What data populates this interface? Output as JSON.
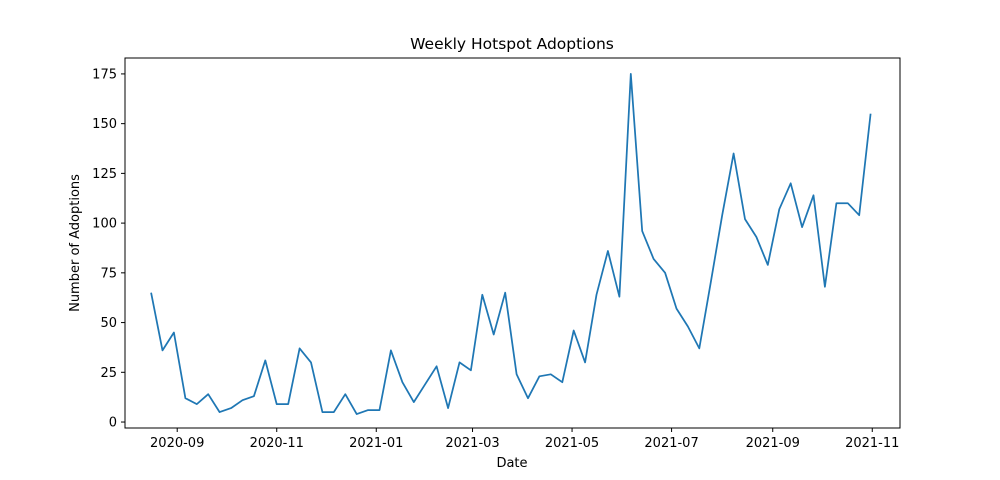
{
  "chart_data": {
    "type": "line",
    "title": "Weekly Hotspot Adoptions",
    "xlabel": "Date",
    "ylabel": "Number of Adoptions",
    "xlim": [
      "2020-07-31",
      "2021-11-18"
    ],
    "ylim": [
      -3,
      183
    ],
    "grid": false,
    "legend": "none",
    "line_color": "#1f77b4",
    "x_ticks": [
      {
        "date": "2020-09-01",
        "label": "2020-09"
      },
      {
        "date": "2020-11-01",
        "label": "2020-11"
      },
      {
        "date": "2021-01-01",
        "label": "2021-01"
      },
      {
        "date": "2021-03-01",
        "label": "2021-03"
      },
      {
        "date": "2021-05-01",
        "label": "2021-05"
      },
      {
        "date": "2021-07-01",
        "label": "2021-07"
      },
      {
        "date": "2021-09-01",
        "label": "2021-09"
      },
      {
        "date": "2021-11-01",
        "label": "2021-11"
      }
    ],
    "y_ticks": [
      {
        "value": 0,
        "label": "0"
      },
      {
        "value": 25,
        "label": "25"
      },
      {
        "value": 50,
        "label": "50"
      },
      {
        "value": 75,
        "label": "75"
      },
      {
        "value": 100,
        "label": "100"
      },
      {
        "value": 125,
        "label": "125"
      },
      {
        "value": 150,
        "label": "150"
      },
      {
        "value": 175,
        "label": "175"
      }
    ],
    "x": [
      "2020-08-16",
      "2020-08-23",
      "2020-08-30",
      "2020-09-06",
      "2020-09-13",
      "2020-09-20",
      "2020-09-27",
      "2020-10-04",
      "2020-10-11",
      "2020-10-18",
      "2020-10-25",
      "2020-11-01",
      "2020-11-08",
      "2020-11-15",
      "2020-11-22",
      "2020-11-29",
      "2020-12-06",
      "2020-12-13",
      "2020-12-20",
      "2020-12-27",
      "2021-01-03",
      "2021-01-10",
      "2021-01-17",
      "2021-01-24",
      "2021-01-31",
      "2021-02-07",
      "2021-02-14",
      "2021-02-21",
      "2021-02-28",
      "2021-03-07",
      "2021-03-14",
      "2021-03-21",
      "2021-03-28",
      "2021-04-04",
      "2021-04-11",
      "2021-04-18",
      "2021-04-25",
      "2021-05-02",
      "2021-05-09",
      "2021-05-16",
      "2021-05-23",
      "2021-05-30",
      "2021-06-06",
      "2021-06-13",
      "2021-06-20",
      "2021-06-27",
      "2021-07-04",
      "2021-07-11",
      "2021-07-18",
      "2021-07-25",
      "2021-08-01",
      "2021-08-08",
      "2021-08-15",
      "2021-08-22",
      "2021-08-29",
      "2021-09-05",
      "2021-09-12",
      "2021-09-19",
      "2021-09-26",
      "2021-10-03",
      "2021-10-10",
      "2021-10-17",
      "2021-10-24",
      "2021-10-31"
    ],
    "series": [
      {
        "values": [
          65,
          36,
          45,
          12,
          9,
          14,
          5,
          7,
          11,
          13,
          31,
          9,
          9,
          37,
          30,
          5,
          5,
          14,
          4,
          6,
          6,
          36,
          20,
          10,
          19,
          28,
          7,
          30,
          26,
          64,
          44,
          65,
          24,
          12,
          23,
          24,
          20,
          46,
          30,
          64,
          86,
          63,
          175,
          96,
          82,
          75,
          57,
          48,
          37,
          70,
          104,
          135,
          102,
          93,
          79,
          107,
          120,
          98,
          114,
          68,
          110,
          110,
          104,
          155
        ]
      }
    ]
  }
}
